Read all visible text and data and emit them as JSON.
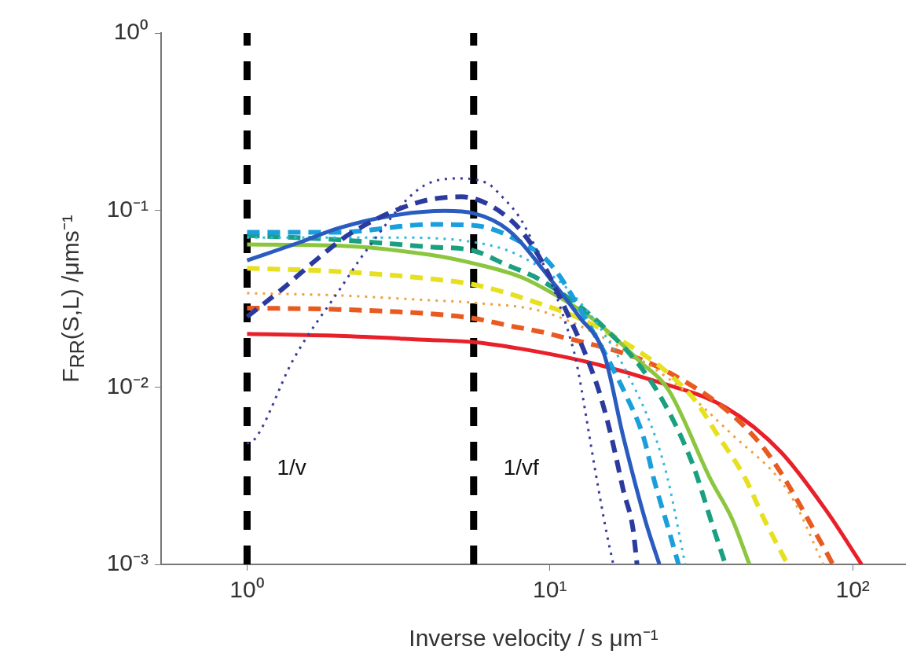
{
  "chart_data": {
    "type": "line",
    "xlabel": "Inverse velocity  / s μm⁻¹",
    "ylabel": "F$_{RR}$(S,L)  /μms⁻¹",
    "log": "xy",
    "grid": false,
    "legend": false,
    "marker": "none",
    "xlim": [
      0.52,
      150
    ],
    "xticks": [
      {
        "value": 1,
        "label": "10⁰"
      },
      {
        "value": 10,
        "label": "10¹"
      },
      {
        "value": 100,
        "label": "10²"
      }
    ],
    "ylim": [
      0.001,
      1
    ],
    "yticks": [
      {
        "value": 0.001,
        "label": "10⁻³"
      },
      {
        "value": 0.01,
        "label": "10⁻²"
      },
      {
        "value": 0.1,
        "label": "10⁻¹"
      },
      {
        "value": 1,
        "label": "10⁰"
      }
    ],
    "ref_lines": [
      {
        "axis": "x",
        "value": 1,
        "label": "1/v",
        "color": "#000000",
        "line_style": "dashed"
      },
      {
        "axis": "x",
        "value": 5.6,
        "label": "1/vf",
        "color": "#000000",
        "line_style": "dashed"
      }
    ],
    "series": [
      {
        "color": "#3a3a9a",
        "line_style": "dotted",
        "x": [
          1,
          1.07,
          1.42,
          2.03,
          2.49,
          3.7,
          4.9,
          6.2,
          6.8,
          8.3,
          12,
          12.5,
          13.2,
          14.2,
          15.4,
          16.2
        ],
        "values": [
          0.0048,
          0.0052,
          0.0143,
          0.036,
          0.06,
          0.132,
          0.151,
          0.142,
          0.124,
          0.08,
          0.016,
          0.0115,
          0.0067,
          0.0032,
          0.0015,
          0.001
        ]
      },
      {
        "color": "#2b3a9e",
        "line_style": "dashed",
        "x": [
          1,
          1.31,
          1.66,
          2.2,
          3.7,
          5.1,
          6.97,
          8.7,
          11,
          14.2,
          15.4,
          16.4,
          17.5,
          18.8,
          19.4
        ],
        "values": [
          0.025,
          0.036,
          0.051,
          0.074,
          0.111,
          0.119,
          0.096,
          0.064,
          0.03,
          0.0107,
          0.0067,
          0.0043,
          0.0026,
          0.0016,
          0.001
        ]
      },
      {
        "color": "#2a5cbf",
        "line_style": "solid",
        "x": [
          1,
          1.5,
          2,
          3,
          4.5,
          5.6,
          7.3,
          10.5,
          12.5,
          15.1,
          17.5,
          20.8,
          23
        ],
        "values": [
          0.052,
          0.066,
          0.079,
          0.093,
          0.099,
          0.096,
          0.077,
          0.037,
          0.025,
          0.0154,
          0.0052,
          0.0017,
          0.001
        ]
      },
      {
        "color": "#1a9fdc",
        "line_style": "dashed",
        "x": [
          1,
          2,
          4,
          5.6,
          7.9,
          10,
          13,
          17.9,
          20.4,
          22.2,
          24.6,
          26.6
        ],
        "values": [
          0.075,
          0.075,
          0.083,
          0.082,
          0.067,
          0.05,
          0.025,
          0.0089,
          0.0052,
          0.0029,
          0.0016,
          0.001
        ]
      },
      {
        "color": "#30b8e0",
        "line_style": "dotted",
        "x": [
          1,
          3,
          5.6,
          8,
          12,
          18,
          24,
          28
        ],
        "values": [
          0.07,
          0.07,
          0.066,
          0.055,
          0.033,
          0.012,
          0.0035,
          0.001
        ]
      },
      {
        "color": "#1aa080",
        "line_style": "dashed",
        "x": [
          1,
          2,
          4,
          5.6,
          7.1,
          9.4,
          15,
          22.2,
          29.4,
          34.7,
          38
        ],
        "values": [
          0.072,
          0.068,
          0.062,
          0.059,
          0.0496,
          0.04,
          0.022,
          0.01,
          0.0038,
          0.0016,
          0.001
        ]
      },
      {
        "color": "#8cc63f",
        "line_style": "solid",
        "x": [
          1,
          2,
          4,
          5.6,
          8,
          10.5,
          14,
          19.9,
          24.6,
          34,
          40,
          45.6
        ],
        "values": [
          0.064,
          0.063,
          0.056,
          0.05,
          0.042,
          0.033,
          0.024,
          0.0139,
          0.0097,
          0.003,
          0.0018,
          0.001
        ]
      },
      {
        "color": "#e6e020",
        "line_style": "dashed",
        "x": [
          1,
          2,
          4,
          5.6,
          8.1,
          15,
          29.4,
          36,
          44,
          51,
          61
        ],
        "values": [
          0.047,
          0.045,
          0.041,
          0.038,
          0.032,
          0.021,
          0.0089,
          0.0053,
          0.0031,
          0.0018,
          0.001
        ]
      },
      {
        "color": "#f0a040",
        "line_style": "dotted",
        "x": [
          1,
          2,
          4,
          5.6,
          10,
          25,
          40,
          62,
          80
        ],
        "values": [
          0.034,
          0.033,
          0.031,
          0.03,
          0.026,
          0.011,
          0.0054,
          0.0025,
          0.001
        ]
      },
      {
        "color": "#e85a20",
        "line_style": "dashed",
        "x": [
          1,
          2,
          4,
          5.6,
          7.3,
          10,
          25,
          50,
          80,
          86
        ],
        "values": [
          0.028,
          0.0275,
          0.026,
          0.0245,
          0.0223,
          0.02,
          0.012,
          0.0047,
          0.00126,
          0.001
        ]
      },
      {
        "color": "#e8202a",
        "line_style": "solid",
        "x": [
          1,
          2,
          4,
          5.6,
          8,
          13.5,
          22,
          38,
          58,
          82,
          107
        ],
        "values": [
          0.02,
          0.0195,
          0.0185,
          0.018,
          0.0165,
          0.0138,
          0.0109,
          0.0077,
          0.0043,
          0.002,
          0.001
        ]
      }
    ]
  }
}
